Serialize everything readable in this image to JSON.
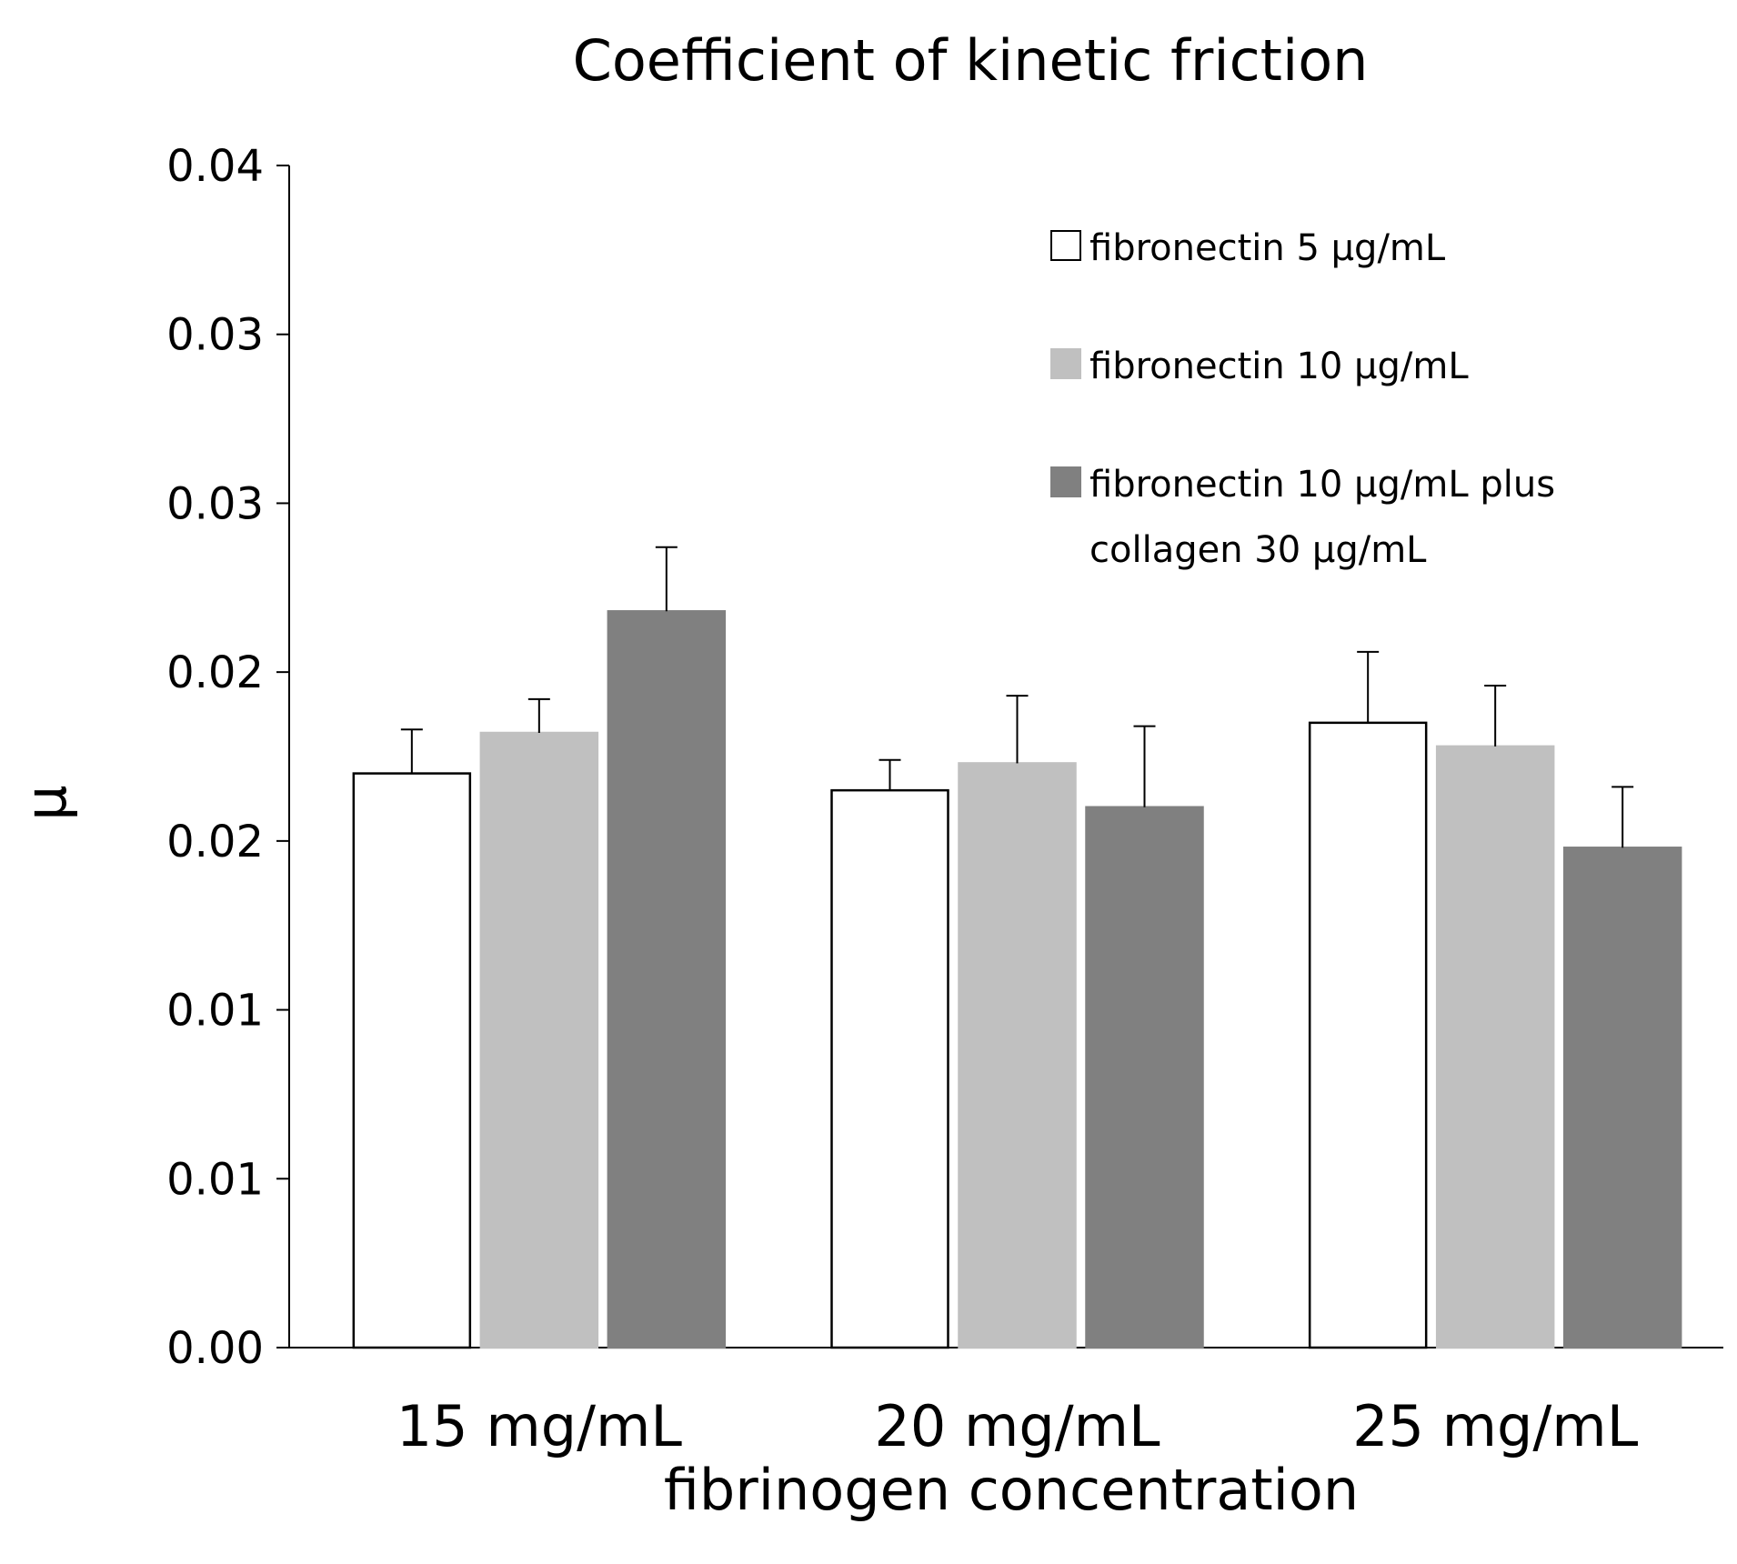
{
  "chart_data": {
    "type": "bar",
    "title": "Coefficient of kinetic friction",
    "xlabel": "fibrinogen concentration",
    "ylabel": "μ",
    "ylim": [
      0,
      0.035
    ],
    "y_ticks": [
      0,
      0.005,
      0.01,
      0.015,
      0.02,
      0.025,
      0.03,
      0.035
    ],
    "y_tick_labels": [
      "0.00",
      "0.01",
      "0.01",
      "0.02",
      "0.02",
      "0.03",
      "0.03",
      "0.04"
    ],
    "categories": [
      "15 mg/mL",
      "20 mg/mL",
      "25 mg/mL"
    ],
    "legend_position": "top-right",
    "series": [
      {
        "name": "fibronectin  5 μg/mL",
        "legend_lines": [
          "fibronectin  5 μg/mL"
        ],
        "fill": "#ffffff",
        "stroke": "#000000",
        "values": [
          0.017,
          0.0165,
          0.0185
        ],
        "errors": [
          0.0013,
          0.0009,
          0.0021
        ]
      },
      {
        "name": "fibronectin  10 μg/mL",
        "legend_lines": [
          "fibronectin  10 μg/mL"
        ],
        "fill": "#c0c0c0",
        "stroke": "#c0c0c0",
        "values": [
          0.0182,
          0.0173,
          0.0178
        ],
        "errors": [
          0.001,
          0.002,
          0.0018
        ]
      },
      {
        "name": "fibronectin 10 μg/mL plus collagen 30 μg/mL",
        "legend_lines": [
          "fibronectin 10 μg/mL plus",
          "collagen 30 μg/mL"
        ],
        "fill": "#808080",
        "stroke": "#808080",
        "values": [
          0.0218,
          0.016,
          0.0148
        ],
        "errors": [
          0.0019,
          0.0024,
          0.0018
        ]
      }
    ]
  }
}
